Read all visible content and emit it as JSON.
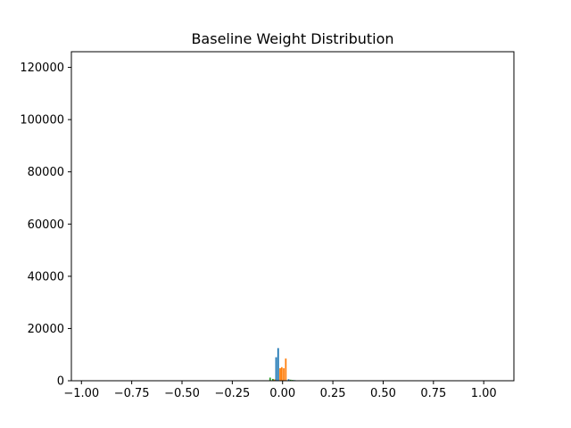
{
  "chart_data": {
    "type": "bar",
    "title": "Baseline Weight Distribution",
    "xlabel": "",
    "ylabel": "",
    "xlim": [
      -1.05,
      1.15
    ],
    "ylim": [
      0,
      126000
    ],
    "xticks": [
      -1.0,
      -0.75,
      -0.5,
      -0.25,
      0.0,
      0.25,
      0.5,
      0.75,
      1.0
    ],
    "xtick_labels": [
      "−1.00",
      "−0.75",
      "−0.50",
      "−0.25",
      "0.00",
      "0.25",
      "0.50",
      "0.75",
      "1.00"
    ],
    "yticks": [
      0,
      20000,
      40000,
      60000,
      80000,
      100000,
      120000
    ],
    "ytick_labels": [
      "0",
      "20000",
      "40000",
      "60000",
      "80000",
      "100000",
      "120000"
    ],
    "grid": false,
    "colors": [
      "#1f77b4",
      "#ff7f0e",
      "#2ca02c"
    ],
    "bars": [
      {
        "x": -0.062,
        "value": 1200,
        "series": 2
      },
      {
        "x": -0.048,
        "value": 700,
        "series": 2
      },
      {
        "x": -0.04,
        "value": 500,
        "series": 1
      },
      {
        "x": -0.032,
        "value": 9000,
        "series": 0
      },
      {
        "x": -0.022,
        "value": 12500,
        "series": 0
      },
      {
        "x": -0.012,
        "value": 4800,
        "series": 1
      },
      {
        "x": -0.004,
        "value": 5200,
        "series": 1
      },
      {
        "x": 0.006,
        "value": 4800,
        "series": 1
      },
      {
        "x": 0.016,
        "value": 8500,
        "series": 1
      },
      {
        "x": 0.03,
        "value": 600,
        "series": 0
      },
      {
        "x": 0.04,
        "value": 400,
        "series": 2
      },
      {
        "x": 0.05,
        "value": 300,
        "series": 2
      },
      {
        "x": 0.06,
        "value": 250,
        "series": 0
      }
    ]
  }
}
